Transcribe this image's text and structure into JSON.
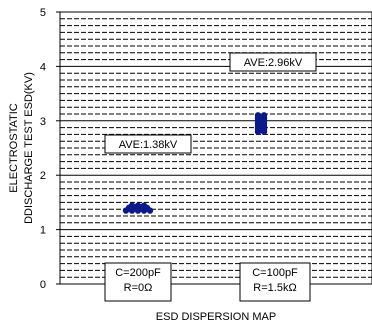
{
  "chart_data": {
    "type": "scatter",
    "title": "",
    "xlabel": "ESD DISPERSION MAP",
    "ylabel_lines": [
      "ELECTROSTATIC",
      "DDISCHARGE TEST ESD(KV)"
    ],
    "ylim": [
      0,
      5
    ],
    "yticks": [
      "0",
      "1",
      "2",
      "3",
      "4",
      "5"
    ],
    "grid": true,
    "groups": [
      {
        "label_lines": [
          "C=200pF",
          "R=0Ω"
        ],
        "average_label": "AVE:1.38kV",
        "average": 1.38,
        "points": [
          1.44,
          1.44,
          1.44,
          1.4,
          1.4,
          1.4,
          1.4,
          1.35,
          1.35,
          1.35,
          1.35,
          1.35
        ]
      },
      {
        "label_lines": [
          "C=100pF",
          "R=1.5kΩ"
        ],
        "average_label": "AVE:2.96kV",
        "average": 2.96,
        "points": [
          3.1,
          3.1,
          3.05,
          3.05,
          3.0,
          3.0,
          2.95,
          2.95,
          2.9,
          2.9,
          2.85,
          2.85,
          2.8,
          2.8
        ]
      }
    ],
    "point_color": "#0a1a8c"
  }
}
